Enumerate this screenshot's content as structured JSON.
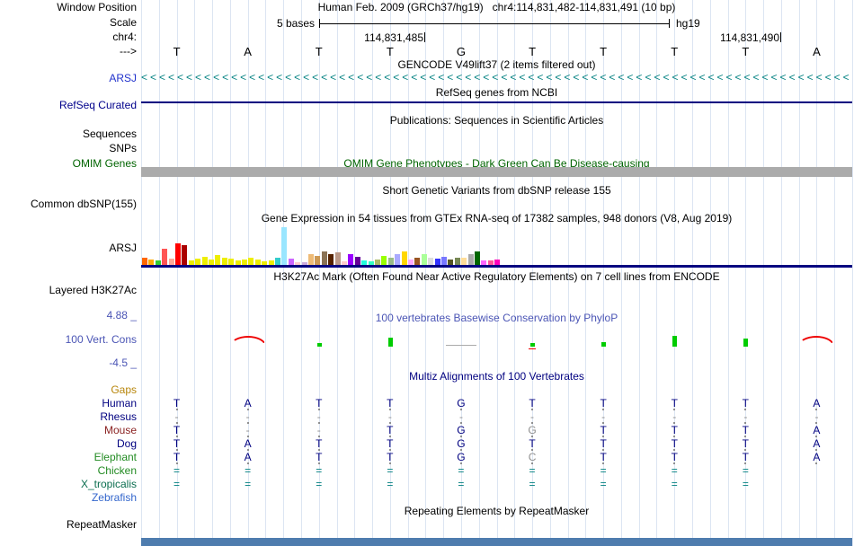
{
  "colors": {
    "navy": "#000080",
    "teal": "#008080",
    "grid": "#DCE5F2",
    "gencode_label": "#2233CC",
    "refseq_label": "#00008B",
    "omim_label": "#006400",
    "omim_bar": "#ABABAB",
    "phylop": "#4B55B5",
    "cons_green": "#00CC00",
    "cons_red": "#EE0000",
    "aln_letter": "#000080",
    "aln_dash": "#909090",
    "aln_unalign": "#008080",
    "gtex_baseline": "#000080",
    "bottom_bar": "#4E7CAE"
  },
  "header": {
    "position_label": "Window Position",
    "title": "Human Feb. 2009 (GRCh37/hg19)   chr4:114,831,482-114,831,491 (10 bp)",
    "scale_label": "Scale",
    "scale_value": "5 bases",
    "assembly": "hg19",
    "chrom_label": "chr4:",
    "pos_tick_1": "114,831,485",
    "pos_tick_2": "114,831,490",
    "strand_label": "--->",
    "bases": [
      "T",
      "A",
      "T",
      "T",
      "G",
      "T",
      "T",
      "T",
      "T",
      "A"
    ]
  },
  "tracks": {
    "gencode": {
      "title": "GENCODE V49lift37 (2 items filtered out)",
      "label": "ARSJ"
    },
    "refseq": {
      "title": "RefSeq genes from NCBI",
      "label": "RefSeq Curated"
    },
    "publications": {
      "title": "Publications: Sequences in Scientific Articles",
      "label_sequences": "Sequences",
      "label_snps": "SNPs"
    },
    "omim": {
      "title": "OMIM Gene Phenotypes - Dark Green Can Be Disease-causing",
      "label": "OMIM Genes"
    },
    "dbsnp": {
      "title": "Short Genetic Variants from dbSNP release 155",
      "label": "Common dbSNP(155)"
    },
    "gtex": {
      "title": "Gene Expression in 54 tissues from GTEx RNA-seq of 17382 samples, 948 donors (V8, Aug 2019)",
      "label": "ARSJ"
    },
    "h3k27ac": {
      "title": "H3K27Ac Mark (Often Found Near Active Regulatory Elements) on 7 cell lines from ENCODE",
      "label": "Layered H3K27Ac"
    },
    "phylop": {
      "title": "100 vertebrates Basewise Conservation by PhyloP",
      "label": "100 Vert. Cons",
      "max_label": "4.88 _",
      "min_label": "-4.5 _",
      "glyphs": [
        {
          "col": 1,
          "type": "arc"
        },
        {
          "col": 2,
          "type": "bar",
          "h": 4
        },
        {
          "col": 3,
          "type": "bar",
          "h": 10
        },
        {
          "col": 4,
          "type": "flat"
        },
        {
          "col": 5,
          "type": "bar",
          "h": 4,
          "red_tick": true
        },
        {
          "col": 6,
          "type": "bar",
          "h": 5
        },
        {
          "col": 7,
          "type": "bar",
          "h": 12
        },
        {
          "col": 8,
          "type": "bar",
          "h": 9
        },
        {
          "col": 9,
          "type": "arc"
        }
      ]
    },
    "multiz": {
      "title": "Multiz Alignments of 100 Vertebrates",
      "rows": [
        {
          "name": "Gaps",
          "color": "#B8860B",
          "dots": false,
          "cells": [
            "",
            "",
            "",
            "",
            "",
            "",
            "",
            "",
            "",
            ""
          ]
        },
        {
          "name": "Human",
          "color": "#000080",
          "dots": true,
          "cells": [
            "T",
            "A",
            "T",
            "T",
            "G",
            "T",
            "T",
            "T",
            "T",
            "A"
          ]
        },
        {
          "name": "Rhesus",
          "color": "#000080",
          "dots": true,
          "cells": [
            "-",
            "-",
            "-",
            "-",
            "-",
            "-",
            "-",
            "-",
            "-",
            "-"
          ]
        },
        {
          "name": "Mouse",
          "color": "#8B2323",
          "dots": true,
          "cells": [
            "T",
            "-",
            "-",
            "T",
            "G",
            "G",
            "T",
            "T",
            "T",
            "A"
          ]
        },
        {
          "name": "Dog",
          "color": "#000080",
          "dots": true,
          "cells": [
            "T",
            "A",
            "T",
            "T",
            "G",
            "T",
            "T",
            "T",
            "T",
            "A"
          ]
        },
        {
          "name": "Elephant",
          "color": "#228B22",
          "dots": true,
          "cells": [
            "T",
            "A",
            "T",
            "T",
            "G",
            "C",
            "T",
            "T",
            "T",
            "A"
          ]
        },
        {
          "name": "Chicken",
          "color": "#228B22",
          "dots": false,
          "cells": [
            "=",
            "=",
            "=",
            "=",
            "=",
            "=",
            "=",
            "=",
            "=",
            ""
          ]
        },
        {
          "name": "X_tropicalis",
          "color": "#0B6E4F",
          "dots": false,
          "cells": [
            "=",
            "=",
            "=",
            "=",
            "=",
            "=",
            "=",
            "=",
            "=",
            ""
          ]
        },
        {
          "name": "Zebrafish",
          "color": "#3366CC",
          "dots": false,
          "cells": [
            "",
            "",
            "",
            "",
            "",
            "",
            "",
            "",
            "",
            ""
          ]
        }
      ],
      "muted_cells": [
        "3:5",
        "5:5"
      ]
    },
    "repeatmasker": {
      "title": "Repeating Elements by RepeatMasker",
      "label": "RepeatMasker"
    }
  },
  "chart_data": {
    "type": "bar",
    "title": "Gene Expression in 54 tissues from GTEx RNA-seq of 17382 samples, 948 donors (V8, Aug 2019)",
    "note": "54 GTEx tissue bars; heights in screen pixels, no numeric axis shown in image",
    "bars": [
      [
        "#FF6600",
        8
      ],
      [
        "#FFAA00",
        6
      ],
      [
        "#33CC33",
        5
      ],
      [
        "#FF5555",
        18
      ],
      [
        "#FFAA99",
        7
      ],
      [
        "#FF0000",
        24
      ],
      [
        "#AA0000",
        22
      ],
      [
        "#EEEE00",
        5
      ],
      [
        "#EEEE00",
        7
      ],
      [
        "#EEEE00",
        9
      ],
      [
        "#EEEE00",
        6
      ],
      [
        "#EEEE00",
        11
      ],
      [
        "#EEEE00",
        8
      ],
      [
        "#EEEE00",
        7
      ],
      [
        "#EEEE00",
        5
      ],
      [
        "#EEEE00",
        6
      ],
      [
        "#EEEE00",
        8
      ],
      [
        "#EEEE00",
        6
      ],
      [
        "#EEEE00",
        4
      ],
      [
        "#EEEE00",
        5
      ],
      [
        "#33CCCC",
        8
      ],
      [
        "#99E6FF",
        42
      ],
      [
        "#CC66FF",
        7
      ],
      [
        "#FFCCCC",
        3
      ],
      [
        "#CCAADD",
        3
      ],
      [
        "#EEBB77",
        12
      ],
      [
        "#CC9955",
        10
      ],
      [
        "#8B7355",
        15
      ],
      [
        "#552200",
        12
      ],
      [
        "#BB9988",
        14
      ],
      [
        "#FFCCCC",
        4
      ],
      [
        "#9900FF",
        12
      ],
      [
        "#660099",
        9
      ],
      [
        "#22FFDD",
        5
      ],
      [
        "#33FFC2",
        4
      ],
      [
        "#AABB66",
        6
      ],
      [
        "#99FF00",
        10
      ],
      [
        "#99BB88",
        8
      ],
      [
        "#AAAAFF",
        12
      ],
      [
        "#FFD700",
        15
      ],
      [
        "#FFAAFF",
        6
      ],
      [
        "#995522",
        8
      ],
      [
        "#AAFF99",
        12
      ],
      [
        "#DDDDDD",
        8
      ],
      [
        "#3333FF",
        7
      ],
      [
        "#7777FF",
        9
      ],
      [
        "#555522",
        6
      ],
      [
        "#778855",
        8
      ],
      [
        "#FFDD99",
        8
      ],
      [
        "#AAAAAA",
        12
      ],
      [
        "#006600",
        15
      ],
      [
        "#FF66FF",
        5
      ],
      [
        "#FF5599",
        5
      ],
      [
        "#FF00BB",
        6
      ]
    ]
  }
}
